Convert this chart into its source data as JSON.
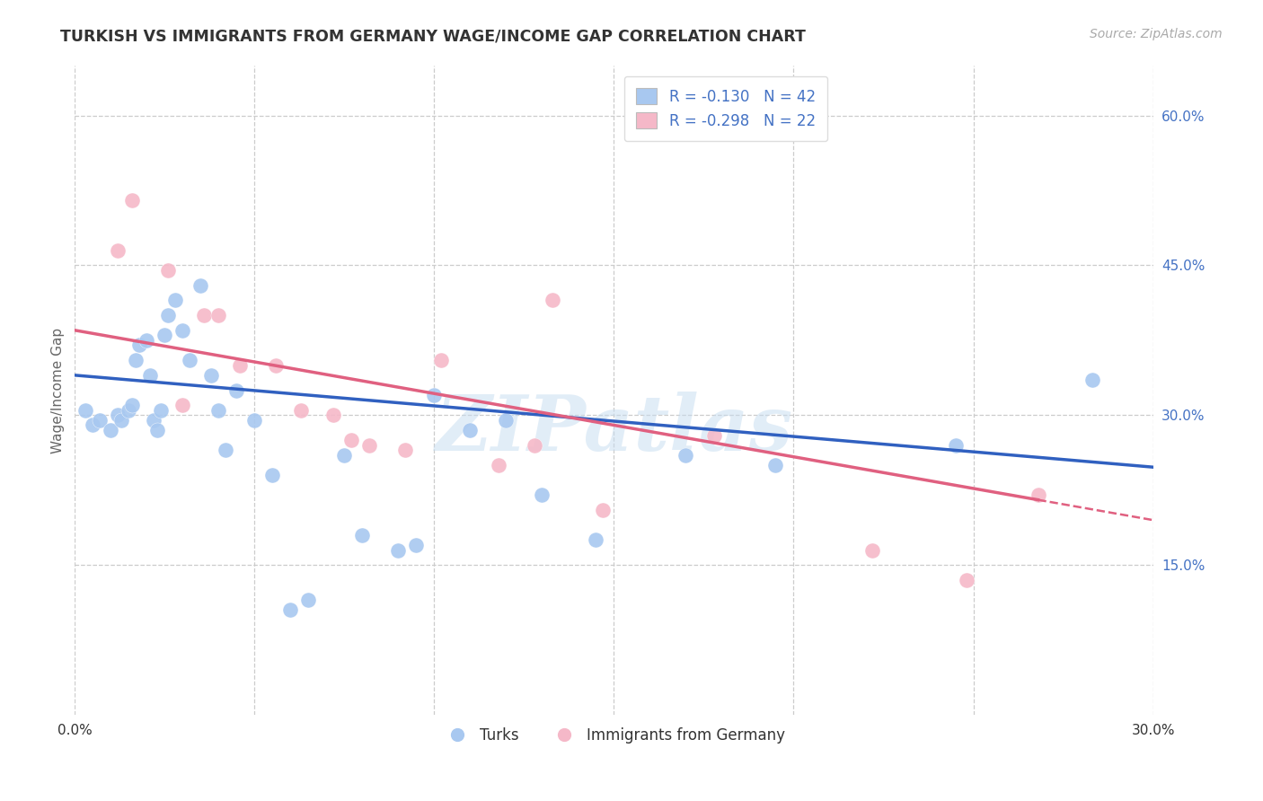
{
  "title": "TURKISH VS IMMIGRANTS FROM GERMANY WAGE/INCOME GAP CORRELATION CHART",
  "source": "Source: ZipAtlas.com",
  "ylabel": "Wage/Income Gap",
  "xlim": [
    0.0,
    0.3
  ],
  "ylim": [
    0.0,
    0.65
  ],
  "xticks": [
    0.0,
    0.05,
    0.1,
    0.15,
    0.2,
    0.25,
    0.3
  ],
  "xticklabels": [
    "0.0%",
    "",
    "",
    "",
    "",
    "",
    "30.0%"
  ],
  "yticks_right": [
    0.15,
    0.3,
    0.45,
    0.6
  ],
  "ytick_right_labels": [
    "15.0%",
    "30.0%",
    "45.0%",
    "60.0%"
  ],
  "blue_color": "#A8C8F0",
  "pink_color": "#F5B8C8",
  "blue_line_color": "#3060C0",
  "pink_line_color": "#E06080",
  "legend_R1": "R = -0.130",
  "legend_N1": "N = 42",
  "legend_R2": "R = -0.298",
  "legend_N2": "N = 22",
  "watermark": "ZIPatlas",
  "background_color": "#FFFFFF",
  "grid_color": "#CCCCCC",
  "turks_x": [
    0.003,
    0.005,
    0.007,
    0.01,
    0.012,
    0.013,
    0.015,
    0.016,
    0.017,
    0.018,
    0.02,
    0.021,
    0.022,
    0.023,
    0.024,
    0.025,
    0.026,
    0.028,
    0.03,
    0.032,
    0.035,
    0.038,
    0.04,
    0.042,
    0.045,
    0.05,
    0.055,
    0.06,
    0.065,
    0.075,
    0.08,
    0.09,
    0.095,
    0.1,
    0.11,
    0.12,
    0.13,
    0.145,
    0.17,
    0.195,
    0.245,
    0.283
  ],
  "turks_y": [
    0.305,
    0.29,
    0.295,
    0.285,
    0.3,
    0.295,
    0.305,
    0.31,
    0.355,
    0.37,
    0.375,
    0.34,
    0.295,
    0.285,
    0.305,
    0.38,
    0.4,
    0.415,
    0.385,
    0.355,
    0.43,
    0.34,
    0.305,
    0.265,
    0.325,
    0.295,
    0.24,
    0.105,
    0.115,
    0.26,
    0.18,
    0.165,
    0.17,
    0.32,
    0.285,
    0.295,
    0.22,
    0.175,
    0.26,
    0.25,
    0.27,
    0.335
  ],
  "germany_x": [
    0.012,
    0.016,
    0.026,
    0.03,
    0.036,
    0.04,
    0.046,
    0.056,
    0.063,
    0.072,
    0.077,
    0.082,
    0.092,
    0.102,
    0.118,
    0.128,
    0.133,
    0.147,
    0.178,
    0.222,
    0.248,
    0.268
  ],
  "germany_y": [
    0.465,
    0.515,
    0.445,
    0.31,
    0.4,
    0.4,
    0.35,
    0.35,
    0.305,
    0.3,
    0.275,
    0.27,
    0.265,
    0.355,
    0.25,
    0.27,
    0.415,
    0.205,
    0.28,
    0.165,
    0.135,
    0.22
  ],
  "blue_trend_x0": 0.0,
  "blue_trend_y0": 0.34,
  "blue_trend_x1": 0.3,
  "blue_trend_y1": 0.248,
  "pink_trend_x0": 0.0,
  "pink_trend_y0": 0.385,
  "pink_trend_x1": 0.3,
  "pink_trend_y1": 0.195
}
